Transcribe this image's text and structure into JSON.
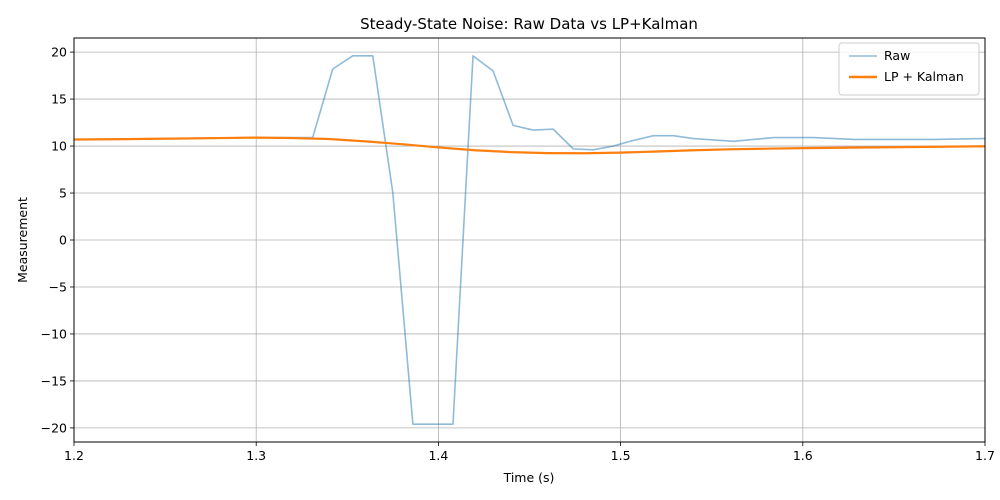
{
  "chart_data": {
    "type": "line",
    "title": "Steady-State Noise: Raw Data vs LP+Kalman",
    "xlabel": "Time (s)",
    "ylabel": "Measurement",
    "xlim": [
      1.2,
      1.7
    ],
    "ylim": [
      -21.5,
      21.5
    ],
    "xticks": [
      1.2,
      1.3,
      1.4,
      1.5,
      1.6,
      1.7
    ],
    "xtick_labels": [
      "1.2",
      "1.3",
      "1.4",
      "1.5",
      "1.6",
      "1.7"
    ],
    "yticks": [
      -20,
      -15,
      -10,
      -5,
      0,
      5,
      10,
      15,
      20
    ],
    "ytick_labels": [
      "−20",
      "−15",
      "−10",
      "−5",
      "0",
      "5",
      "10",
      "15",
      "20"
    ],
    "grid": true,
    "legend_position": "top-right",
    "series": [
      {
        "name": "Raw",
        "color": "#1f77b4",
        "opacity": 0.5,
        "x": [
          1.2,
          1.25,
          1.3,
          1.331,
          1.342,
          1.353,
          1.364,
          1.375,
          1.386,
          1.397,
          1.408,
          1.419,
          1.43,
          1.441,
          1.452,
          1.463,
          1.474,
          1.485,
          1.496,
          1.507,
          1.518,
          1.529,
          1.54,
          1.562,
          1.584,
          1.606,
          1.628,
          1.65,
          1.672,
          1.7
        ],
        "y": [
          10.7,
          10.8,
          10.9,
          10.9,
          18.2,
          19.6,
          19.6,
          5.0,
          -19.6,
          -19.6,
          -19.6,
          19.6,
          18.0,
          12.2,
          11.7,
          11.8,
          9.7,
          9.6,
          10.0,
          10.6,
          11.1,
          11.1,
          10.8,
          10.5,
          10.9,
          10.9,
          10.7,
          10.7,
          10.7,
          10.8
        ]
      },
      {
        "name": "LP + Kalman",
        "color": "#ff7f0e",
        "opacity": 1,
        "x": [
          1.2,
          1.22,
          1.24,
          1.26,
          1.28,
          1.3,
          1.32,
          1.34,
          1.36,
          1.38,
          1.4,
          1.42,
          1.44,
          1.46,
          1.48,
          1.5,
          1.52,
          1.54,
          1.56,
          1.58,
          1.6,
          1.62,
          1.64,
          1.66,
          1.68,
          1.7
        ],
        "y": [
          10.7,
          10.72,
          10.76,
          10.8,
          10.85,
          10.9,
          10.85,
          10.75,
          10.5,
          10.2,
          9.85,
          9.55,
          9.35,
          9.25,
          9.23,
          9.3,
          9.42,
          9.55,
          9.65,
          9.72,
          9.78,
          9.82,
          9.86,
          9.9,
          9.94,
          9.98
        ]
      }
    ]
  }
}
